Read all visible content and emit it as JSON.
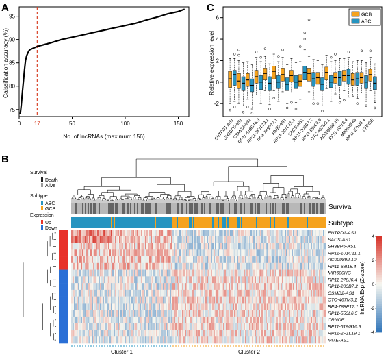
{
  "panels": {
    "a": {
      "letter": "A"
    },
    "b": {
      "letter": "B"
    },
    "c": {
      "letter": "C"
    }
  },
  "colors": {
    "gcb": "#f5a21d",
    "abc": "#2694c0",
    "up": "#e8312a",
    "down": "#2a6fd6",
    "death": "#222222",
    "alive": "#9a9a9a",
    "dashed": "#d8452a",
    "heat_low": "#2c72b8",
    "heat_mid": "#f7f7f0",
    "heat_high": "#d73027"
  },
  "chart_data": [
    {
      "type": "line",
      "panel": "A",
      "xlabel": "No. of lncRNAs (maximum 156)",
      "ylabel": "Calssification accuracy (%)",
      "xlim": [
        0,
        160
      ],
      "ylim": [
        73.5,
        97
      ],
      "xticks": [
        0,
        50,
        100,
        150
      ],
      "yticks": [
        75,
        80,
        85,
        90,
        95
      ],
      "marker": {
        "x": 17,
        "label": "17"
      },
      "x": [
        1,
        2,
        3,
        4,
        5,
        6,
        7,
        8,
        9,
        10,
        12,
        14,
        17,
        20,
        25,
        30,
        40,
        50,
        60,
        70,
        80,
        90,
        100,
        110,
        120,
        130,
        140,
        150,
        156
      ],
      "y": [
        74.0,
        76.0,
        78.5,
        81.0,
        83.5,
        85.5,
        86.5,
        87.0,
        87.5,
        87.8,
        88.0,
        88.2,
        88.5,
        88.7,
        89.0,
        89.3,
        90.0,
        90.5,
        91.0,
        91.5,
        92.0,
        92.5,
        93.0,
        93.5,
        94.2,
        94.8,
        95.5,
        96.0,
        96.5
      ]
    },
    {
      "type": "box",
      "panel": "C",
      "ylabel": "Relative expression level",
      "ylim": [
        -3.2,
        7
      ],
      "yticks": [
        -2,
        0,
        2,
        4,
        6
      ],
      "legend": [
        "GCB",
        "ABC"
      ],
      "legend_position": "top-right",
      "categories": [
        "ENTPD1-AS1",
        "SH3BP5-AS1",
        "CSMD2-AS1",
        "RP11-519G16.3",
        "RP11-2F1L19.1",
        "RP4-788P17.1",
        "MME-AS1",
        "RP11-101C11.1",
        "SACS-AS1",
        "RP11-203B7.2",
        "RP11-553L6.5",
        "CTC-467M3.1",
        "AC009892.10",
        "RP11-68I18.4",
        "MIR600HG",
        "RP11-278J6.4",
        "CRNDE"
      ],
      "series": [
        {
          "name": "GCB",
          "q1": [
            -0.5,
            -0.6,
            -0.4,
            -0.1,
            0.2,
            0.3,
            0.1,
            0.0,
            -0.4,
            0.1,
            -0.2,
            0.2,
            -0.1,
            0.1,
            -0.3,
            -0.1,
            0.1
          ],
          "median": [
            0.3,
            0.1,
            0.2,
            0.5,
            0.8,
            1.0,
            0.7,
            0.6,
            0.1,
            0.8,
            0.4,
            0.9,
            0.4,
            0.6,
            0.2,
            0.4,
            0.7
          ],
          "q3": [
            1.0,
            0.8,
            0.8,
            1.1,
            1.3,
            1.5,
            1.3,
            1.1,
            0.7,
            1.3,
            0.9,
            1.4,
            0.9,
            1.1,
            0.8,
            0.9,
            1.2
          ],
          "low": [
            -2.0,
            -2.0,
            -1.6,
            -1.2,
            -0.8,
            -0.8,
            -0.9,
            -1.0,
            -1.6,
            -0.9,
            -1.2,
            -0.6,
            -1.1,
            -0.8,
            -1.3,
            -1.0,
            -0.8
          ],
          "high": [
            2.2,
            2.0,
            1.9,
            2.3,
            2.4,
            2.6,
            2.3,
            2.2,
            1.9,
            2.4,
            2.0,
            2.5,
            2.0,
            2.2,
            1.9,
            2.0,
            2.3
          ],
          "outliers": [
            [
              -2.6
            ],
            [
              2.5,
              3.0
            ],
            [
              -2.3
            ],
            [
              2.8
            ],
            [
              3.1
            ],
            [
              -1.5
            ],
            [
              3.0
            ],
            [
              -1.9
            ],
            [
              3.3
            ],
            [
              5.8
            ],
            [
              -2.0
            ],
            [],
            [
              2.6
            ],
            [
              -1.7
            ],
            [],
            [
              2.9
            ],
            [
              2.9
            ]
          ]
        },
        {
          "name": "ABC",
          "q1": [
            -0.3,
            -0.8,
            -0.9,
            -0.7,
            -0.8,
            -0.6,
            -0.8,
            -0.6,
            0.2,
            -0.4,
            -0.8,
            -0.5,
            -0.3,
            -0.2,
            -0.3,
            -0.6,
            -0.7
          ],
          "median": [
            0.7,
            -0.1,
            -0.3,
            0.0,
            -0.1,
            0.0,
            -0.2,
            0.0,
            0.9,
            0.3,
            -0.2,
            0.0,
            0.4,
            0.6,
            0.3,
            0.0,
            -0.1
          ],
          "q3": [
            1.1,
            0.5,
            0.3,
            0.6,
            0.5,
            0.6,
            0.4,
            0.6,
            1.5,
            0.9,
            0.4,
            0.6,
            1.0,
            1.2,
            0.9,
            0.6,
            0.5
          ],
          "low": [
            -1.8,
            -2.2,
            -2.5,
            -2.0,
            -2.1,
            -1.8,
            -2.0,
            -1.9,
            -1.0,
            -1.6,
            -2.2,
            -1.8,
            -1.5,
            -1.4,
            -1.5,
            -1.8,
            -1.9
          ],
          "high": [
            2.2,
            1.8,
            1.6,
            1.9,
            1.7,
            1.9,
            1.6,
            1.8,
            3.0,
            2.1,
            1.6,
            1.9,
            2.2,
            2.3,
            2.0,
            1.8,
            1.7
          ],
          "outliers": [
            [
              -2.3,
              2.6
            ],
            [
              -2.8
            ],
            [
              -2.9
            ],
            [
              2.3
            ],
            [
              -2.5
            ],
            [
              2.4
            ],
            [
              -2.4
            ],
            [
              -2.5
            ],
            [
              4.0,
              4.6
            ],
            [
              -2.0
            ],
            [
              -2.7
            ],
            [
              2.3
            ],
            [
              -1.9
            ],
            [
              2.8
            ],
            [
              -2.0
            ],
            [
              -2.2
            ],
            [
              -2.4
            ]
          ]
        }
      ]
    },
    {
      "type": "heatmap",
      "panel": "B",
      "top_tracks": [
        "Survival",
        "Subtype"
      ],
      "legend_survival": {
        "title": "Survival",
        "items": [
          "Death",
          "Alive"
        ]
      },
      "legend_subtype": {
        "title": "Subtype",
        "items": [
          "ABC",
          "GCB"
        ]
      },
      "legend_expression": {
        "title": "Expression",
        "items": [
          "Up",
          "Down"
        ]
      },
      "rows": [
        "ENTPD1-AS1",
        "SACS-AS1",
        "SH3BP5-AS1",
        "RP11-101C11.1",
        "AC009892.10",
        "RP11-68I18.4",
        "MIR600HG",
        "RP11-278J6.4",
        "RP11-203B7.2",
        "CSMD2-AS1",
        "CTC-467M3.1",
        "RP4-788P17.1",
        "RP11-553L6.5",
        "CRNDE",
        "RP11-519G16.3",
        "RP11-2F1L19.1",
        "MME-AS1"
      ],
      "row_group": [
        "Up",
        "Up",
        "Up",
        "Up",
        "Up",
        "Up",
        "Down",
        "Down",
        "Down",
        "Down",
        "Down",
        "Down",
        "Down",
        "Down",
        "Down",
        "Down",
        "Down"
      ],
      "clusters": [
        "Cluster 1",
        "Cluster 2"
      ],
      "colorbar_label": "lncRNA Exp (Z-score)",
      "colorbar_ticks": [
        4,
        2,
        0,
        -2,
        -4
      ],
      "zlim": [
        -4,
        4
      ]
    }
  ]
}
